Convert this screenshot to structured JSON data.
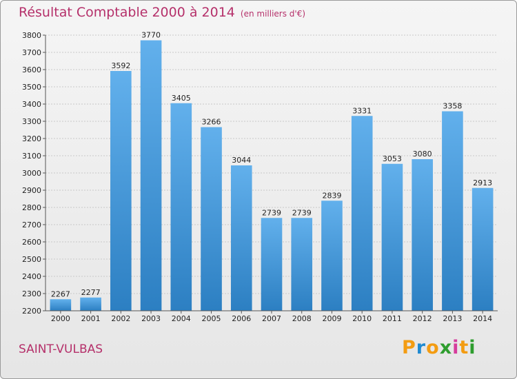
{
  "header": {
    "title": "Résultat Comptable 2000 à 2014",
    "unit": "(en milliers d'€)"
  },
  "footer": {
    "place": "SAINT-VULBAS",
    "logo": [
      "P",
      "r",
      "o",
      "x",
      "i",
      "t",
      "i"
    ],
    "logo_colors": [
      "#f39c12",
      "#1f8ad1",
      "#f39c12",
      "#2e9d2e",
      "#d63c9c",
      "#f39c12",
      "#2e9d2e"
    ]
  },
  "colors": {
    "bar_light": "#62b0ec",
    "bar_dark": "#2c7fc2",
    "grid": "#c8c8c8"
  },
  "chart_data": {
    "type": "bar",
    "title": "Résultat Comptable 2000 à 2014",
    "subtitle": "(en milliers d'€)",
    "xlabel": "",
    "ylabel": "",
    "categories": [
      "2000",
      "2001",
      "2002",
      "2003",
      "2004",
      "2005",
      "2006",
      "2007",
      "2008",
      "2009",
      "2010",
      "2011",
      "2012",
      "2013",
      "2014"
    ],
    "values": [
      2267,
      2277,
      3592,
      3770,
      3405,
      3266,
      3044,
      2739,
      2739,
      2839,
      3331,
      3053,
      3080,
      3358,
      2913
    ],
    "ylim": [
      2200,
      3800
    ],
    "yticks": [
      2200,
      2300,
      2400,
      2500,
      2600,
      2700,
      2800,
      2900,
      3000,
      3100,
      3200,
      3300,
      3400,
      3500,
      3600,
      3700,
      3800
    ],
    "grid": true,
    "legend": "none"
  }
}
